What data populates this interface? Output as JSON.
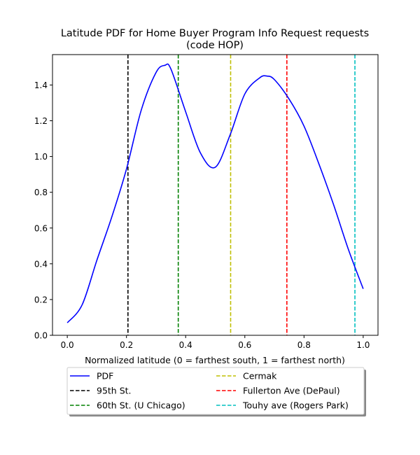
{
  "chart_data": {
    "type": "line",
    "title_line1": "Latitude PDF for Home Buyer Program Info Request  requests",
    "title_line2": "(code HOP)",
    "xlabel": "Normalized latitude (0 = farthest south, 1 = farthest north)",
    "ylabel": "",
    "xlim": [
      -0.05,
      1.05
    ],
    "ylim": [
      0,
      1.57
    ],
    "xticks": [
      0.0,
      0.2,
      0.4,
      0.6,
      0.8,
      1.0
    ],
    "xtick_labels": [
      "0.0",
      "0.2",
      "0.4",
      "0.6",
      "0.8",
      "1.0"
    ],
    "yticks": [
      0.0,
      0.2,
      0.4,
      0.6,
      0.8,
      1.0,
      1.2,
      1.4
    ],
    "ytick_labels": [
      "0.0",
      "0.2",
      "0.4",
      "0.6",
      "0.8",
      "1.0",
      "1.2",
      "1.4"
    ],
    "grid": false,
    "legend_position": "below plot, two columns",
    "series": [
      {
        "name": "PDF",
        "color": "#0000ff",
        "style": "solid",
        "x": [
          0.0,
          0.05,
          0.1,
          0.15,
          0.2,
          0.25,
          0.3,
          0.33,
          0.35,
          0.4,
          0.45,
          0.5,
          0.55,
          0.6,
          0.65,
          0.675,
          0.7,
          0.75,
          0.8,
          0.85,
          0.9,
          0.95,
          1.0
        ],
        "y": [
          0.07,
          0.17,
          0.42,
          0.66,
          0.93,
          1.26,
          1.47,
          1.51,
          1.49,
          1.25,
          1.02,
          0.94,
          1.12,
          1.35,
          1.44,
          1.45,
          1.43,
          1.32,
          1.17,
          0.96,
          0.73,
          0.48,
          0.26
        ]
      }
    ],
    "vlines": [
      {
        "name": "95th St.",
        "x": 0.205,
        "color": "#000000"
      },
      {
        "name": "60th St. (U Chicago)",
        "x": 0.375,
        "color": "#008000"
      },
      {
        "name": "Cermak",
        "x": 0.552,
        "color": "#bfbf00"
      },
      {
        "name": "Fullerton Ave (DePaul)",
        "x": 0.742,
        "color": "#ff0000"
      },
      {
        "name": "Touhy ave (Rogers Park)",
        "x": 0.972,
        "color": "#00bfbf"
      }
    ],
    "legend": {
      "column1": [
        {
          "label": "PDF",
          "color": "#0000ff",
          "style": "solid"
        },
        {
          "label": "95th St.",
          "color": "#000000",
          "style": "dashed"
        },
        {
          "label": "60th St. (U Chicago)",
          "color": "#008000",
          "style": "dashed"
        }
      ],
      "column2": [
        {
          "label": "Cermak",
          "color": "#bfbf00",
          "style": "dashed"
        },
        {
          "label": "Fullerton Ave (DePaul)",
          "color": "#ff0000",
          "style": "dashed"
        },
        {
          "label": "Touhy ave (Rogers Park)",
          "color": "#00bfbf",
          "style": "dashed"
        }
      ]
    }
  }
}
